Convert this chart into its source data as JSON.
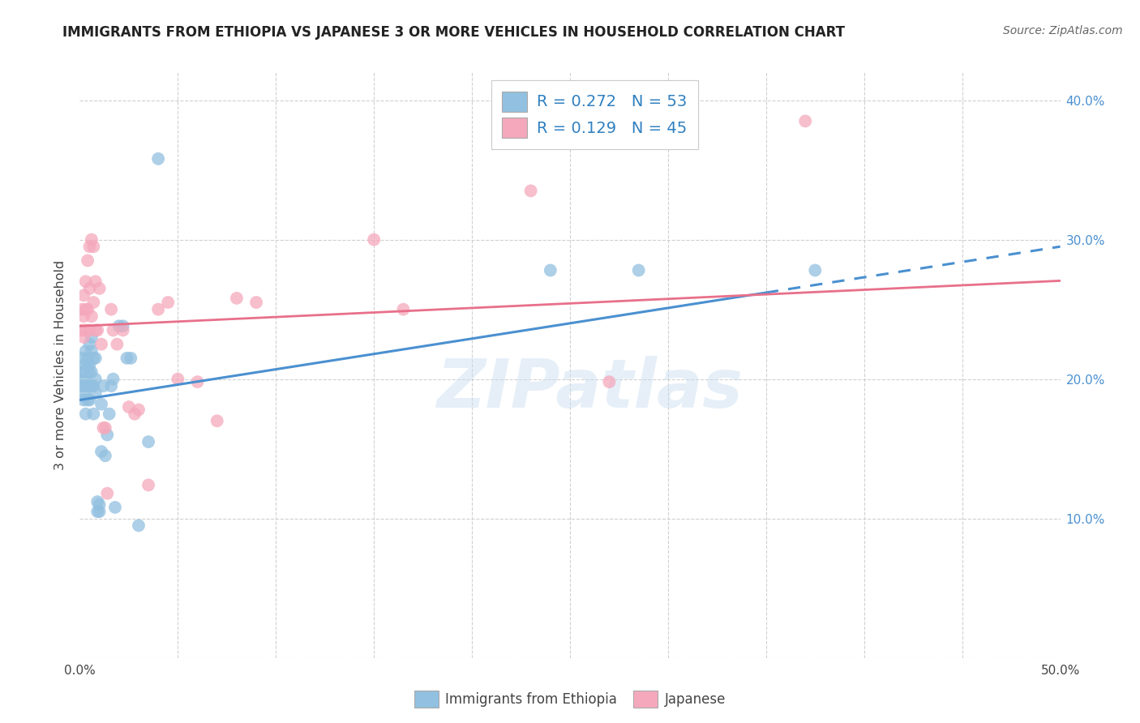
{
  "title": "IMMIGRANTS FROM ETHIOPIA VS JAPANESE 3 OR MORE VEHICLES IN HOUSEHOLD CORRELATION CHART",
  "source": "Source: ZipAtlas.com",
  "ylabel": "3 or more Vehicles in Household",
  "xlim": [
    0.0,
    0.5
  ],
  "ylim": [
    0.0,
    0.42
  ],
  "xtick_vals": [
    0.0,
    0.05,
    0.1,
    0.15,
    0.2,
    0.25,
    0.3,
    0.35,
    0.4,
    0.45,
    0.5
  ],
  "xtick_labels": [
    "0.0%",
    "",
    "",
    "",
    "",
    "",
    "",
    "",
    "",
    "",
    "50.0%"
  ],
  "ytick_vals": [
    0.0,
    0.1,
    0.2,
    0.3,
    0.4
  ],
  "ytick_right_labels": [
    "",
    "10.0%",
    "20.0%",
    "30.0%",
    "40.0%"
  ],
  "blue_scatter_color": "#92c0e0",
  "pink_scatter_color": "#f5a8bc",
  "blue_line_color": "#4a90d0",
  "pink_line_color": "#e8708a",
  "R_ethiopia": 0.272,
  "N_ethiopia": 53,
  "R_japanese": 0.129,
  "N_japanese": 45,
  "watermark": "ZIPatlas",
  "blue_line_intercept": 0.185,
  "blue_line_slope": 0.22,
  "pink_line_intercept": 0.238,
  "pink_line_slope": 0.065,
  "ethiopia_x": [
    0.001,
    0.001,
    0.001,
    0.002,
    0.002,
    0.002,
    0.002,
    0.003,
    0.003,
    0.003,
    0.003,
    0.004,
    0.004,
    0.004,
    0.004,
    0.005,
    0.005,
    0.005,
    0.005,
    0.005,
    0.006,
    0.006,
    0.006,
    0.006,
    0.007,
    0.007,
    0.007,
    0.008,
    0.008,
    0.008,
    0.009,
    0.009,
    0.01,
    0.01,
    0.011,
    0.011,
    0.012,
    0.013,
    0.014,
    0.015,
    0.016,
    0.017,
    0.018,
    0.02,
    0.022,
    0.024,
    0.026,
    0.03,
    0.035,
    0.04,
    0.24,
    0.285,
    0.375
  ],
  "ethiopia_y": [
    0.195,
    0.205,
    0.215,
    0.19,
    0.2,
    0.21,
    0.185,
    0.195,
    0.205,
    0.175,
    0.22,
    0.21,
    0.195,
    0.185,
    0.215,
    0.225,
    0.21,
    0.195,
    0.205,
    0.185,
    0.22,
    0.205,
    0.195,
    0.23,
    0.215,
    0.195,
    0.175,
    0.215,
    0.2,
    0.19,
    0.105,
    0.112,
    0.105,
    0.11,
    0.148,
    0.182,
    0.195,
    0.145,
    0.16,
    0.175,
    0.195,
    0.2,
    0.108,
    0.238,
    0.238,
    0.215,
    0.215,
    0.095,
    0.155,
    0.358,
    0.278,
    0.278,
    0.278
  ],
  "japanese_x": [
    0.001,
    0.001,
    0.002,
    0.002,
    0.002,
    0.003,
    0.003,
    0.003,
    0.004,
    0.004,
    0.005,
    0.005,
    0.005,
    0.006,
    0.006,
    0.007,
    0.007,
    0.008,
    0.008,
    0.009,
    0.01,
    0.011,
    0.012,
    0.013,
    0.014,
    0.016,
    0.017,
    0.019,
    0.022,
    0.025,
    0.028,
    0.03,
    0.035,
    0.04,
    0.045,
    0.05,
    0.06,
    0.07,
    0.08,
    0.09,
    0.15,
    0.165,
    0.23,
    0.27,
    0.37
  ],
  "japanese_y": [
    0.25,
    0.235,
    0.26,
    0.245,
    0.23,
    0.27,
    0.25,
    0.235,
    0.285,
    0.25,
    0.295,
    0.265,
    0.235,
    0.3,
    0.245,
    0.295,
    0.255,
    0.27,
    0.235,
    0.235,
    0.265,
    0.225,
    0.165,
    0.165,
    0.118,
    0.25,
    0.235,
    0.225,
    0.235,
    0.18,
    0.175,
    0.178,
    0.124,
    0.25,
    0.255,
    0.2,
    0.198,
    0.17,
    0.258,
    0.255,
    0.3,
    0.25,
    0.335,
    0.198,
    0.385
  ]
}
